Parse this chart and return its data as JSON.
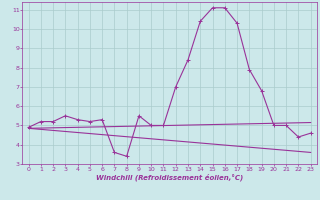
{
  "xlabel": "Windchill (Refroidissement éolien,°C)",
  "xlim": [
    -0.5,
    23.5
  ],
  "ylim": [
    3,
    11.4
  ],
  "yticks": [
    3,
    4,
    5,
    6,
    7,
    8,
    9,
    10,
    11
  ],
  "xticks": [
    0,
    1,
    2,
    3,
    4,
    5,
    6,
    7,
    8,
    9,
    10,
    11,
    12,
    13,
    14,
    15,
    16,
    17,
    18,
    19,
    20,
    21,
    22,
    23
  ],
  "bg_color": "#cce8ea",
  "grid_color": "#aacccc",
  "line_color": "#993399",
  "curve1_x": [
    0,
    1,
    2,
    3,
    4,
    5,
    6,
    7,
    8,
    9,
    10,
    11,
    12,
    13,
    14,
    15,
    16,
    17,
    18,
    19,
    20,
    21,
    22,
    23
  ],
  "curve1_y": [
    4.9,
    5.2,
    5.2,
    5.5,
    5.3,
    5.2,
    5.3,
    3.6,
    3.4,
    5.5,
    5.0,
    5.0,
    7.0,
    8.4,
    10.4,
    11.1,
    11.1,
    10.3,
    7.9,
    6.8,
    5.0,
    5.0,
    4.4,
    4.6
  ],
  "curve2_x": [
    0,
    23
  ],
  "curve2_y": [
    4.85,
    3.6
  ],
  "curve3_x": [
    0,
    23
  ],
  "curve3_y": [
    4.85,
    5.15
  ]
}
